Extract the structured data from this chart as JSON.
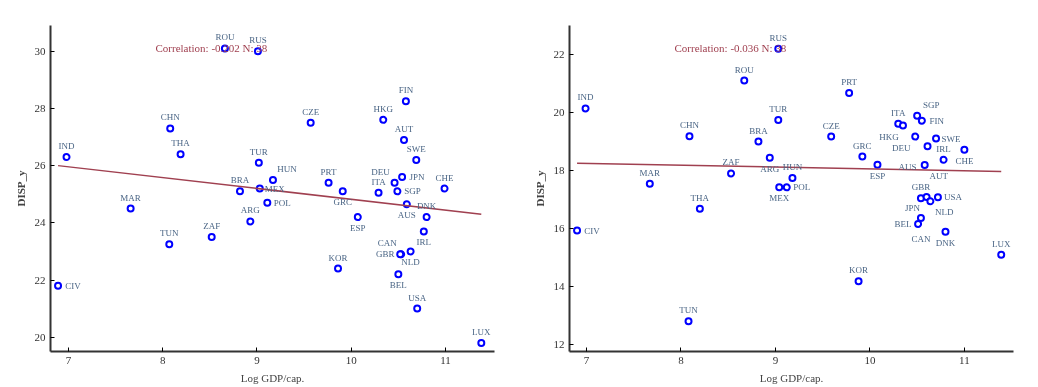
{
  "chart_data": [
    {
      "type": "scatter",
      "xlabel": "Log GDP/cap.",
      "ylabel": "DISP_y",
      "annotations": [
        "Correlation: -0.202   N:   38"
      ],
      "xlim": [
        6.81,
        11.52
      ],
      "ylim": [
        19.5,
        30.9
      ],
      "xticks": [
        7,
        8,
        9,
        10,
        11
      ],
      "yticks": [
        20,
        22,
        24,
        26,
        28,
        30
      ],
      "series": [
        {
          "marker": "circle",
          "color": "#0000ff",
          "x": [
            8.66,
            9.01,
            8.08,
            6.98,
            8.19,
            9.02,
            8.82,
            9.03,
            7.66,
            8.93,
            8.52,
            8.07,
            6.89,
            9.11,
            9.17,
            9.76,
            9.91,
            9.57,
            10.07,
            9.86,
            10.29,
            10.34,
            10.58,
            10.56,
            10.69,
            10.54,
            10.46,
            10.49,
            10.59,
            10.8,
            10.77,
            10.63,
            10.53,
            10.52,
            10.5,
            10.7,
            11.38,
            10.99
          ],
          "values": [
            30.1,
            30.0,
            27.3,
            26.3,
            26.4,
            26.1,
            25.1,
            25.2,
            24.5,
            24.05,
            23.5,
            23.25,
            21.8,
            24.7,
            25.5,
            25.4,
            25.1,
            27.5,
            24.2,
            22.4,
            25.05,
            27.6,
            28.25,
            26.9,
            26.2,
            25.6,
            25.4,
            25.1,
            24.65,
            24.2,
            23.7,
            23.0,
            22.9,
            22.9,
            22.2,
            21.0,
            19.8,
            25.2
          ],
          "value_labels": [
            "ROU",
            "RUS",
            "CHN",
            "IND",
            "THA",
            "TUR",
            "BRA",
            "MEX",
            "MAR",
            "ARG",
            "ZAF",
            "TUN",
            "CIV",
            "POL",
            "HUN",
            "PRT",
            "GRC",
            "CZE",
            "ESP",
            "KOR",
            "ITA",
            "HKG",
            "FIN",
            "AUT",
            "SWE",
            "JPN",
            "DEU",
            "SGP",
            "AUS",
            "DNK",
            "IRL",
            "NLD",
            "CAN",
            "GBR",
            "BEL",
            "USA",
            "LUX",
            "CHE"
          ]
        },
        {
          "type": "line",
          "color": "#a04050",
          "x": [
            6.89,
            11.38
          ],
          "values": [
            26.0,
            24.3
          ]
        }
      ]
    },
    {
      "type": "scatter",
      "xlabel": "Log GDP/cap.",
      "ylabel": "DISP_y",
      "annotations": [
        "Correlation: -0.036   N:   38"
      ],
      "xlim": [
        6.82,
        11.52
      ],
      "ylim": [
        11.76,
        23.0
      ],
      "xticks": [
        7,
        8,
        9,
        10,
        11
      ],
      "yticks": [
        12,
        14,
        16,
        18,
        20,
        22
      ],
      "series": [
        {
          "marker": "circle",
          "color": "#0000ff",
          "x": [
            6.99,
            8.67,
            8.09,
            8.82,
            8.94,
            8.53,
            7.67,
            8.2,
            6.9,
            8.08,
            9.03,
            9.03,
            9.04,
            9.12,
            9.18,
            9.59,
            9.78,
            9.92,
            10.08,
            9.88,
            10.3,
            10.35,
            10.5,
            10.55,
            10.48,
            10.7,
            10.61,
            10.58,
            10.78,
            11.0,
            10.54,
            10.6,
            10.64,
            10.72,
            10.54,
            10.51,
            10.8,
            11.39
          ],
          "values": [
            20.14,
            21.1,
            19.18,
            19.0,
            18.44,
            17.9,
            17.54,
            16.68,
            15.93,
            12.8,
            22.2,
            19.74,
            17.42,
            17.42,
            17.74,
            19.17,
            20.67,
            18.48,
            18.2,
            14.18,
            19.61,
            19.55,
            19.89,
            19.72,
            19.17,
            19.1,
            18.84,
            18.19,
            18.37,
            18.72,
            17.04,
            17.09,
            16.94,
            17.08,
            16.36,
            16.16,
            15.89,
            15.1
          ],
          "value_labels": [
            "IND",
            "ROU",
            "CHN",
            "BRA",
            "ARG",
            "ZAF",
            "MAR",
            "THA",
            "CIV",
            "TUN",
            "RUS",
            "TUR",
            "MEX",
            "POL",
            "HUN",
            "CZE",
            "PRT",
            "GRC",
            "ESP",
            "KOR",
            "ITA",
            "HKG",
            "SGP",
            "FIN",
            "DEU",
            "SWE",
            "AUS",
            "AUT",
            "IRL",
            "CHE",
            "GBR",
            "JPN",
            "NLD",
            "USA",
            "CAN",
            "BEL",
            "DNK",
            "LUX"
          ]
        },
        {
          "type": "line",
          "color": "#a04050",
          "x": [
            6.9,
            11.39
          ],
          "values": [
            18.25,
            17.97
          ]
        }
      ]
    }
  ]
}
